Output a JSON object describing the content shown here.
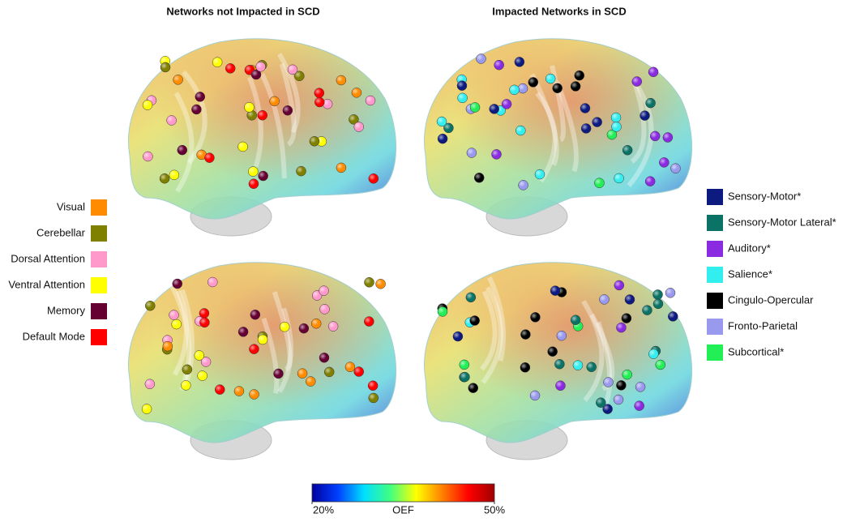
{
  "titles": {
    "left": "Networks not Impacted in SCD",
    "right": "Impacted Networks in SCD"
  },
  "legend_left": [
    {
      "label": "Visual",
      "color": "#ff8c00"
    },
    {
      "label": "Cerebellar",
      "color": "#7f7f00"
    },
    {
      "label": "Dorsal Attention",
      "color": "#ff99cc"
    },
    {
      "label": "Ventral Attention",
      "color": "#ffff00"
    },
    {
      "label": "Memory",
      "color": "#660033"
    },
    {
      "label": "Default Mode",
      "color": "#ff0000"
    }
  ],
  "legend_right": [
    {
      "label": "Sensory-Motor*",
      "color": "#0d1a80"
    },
    {
      "label": "Sensory-Motor Lateral*",
      "color": "#0a7366"
    },
    {
      "label": "Auditory*",
      "color": "#8a2be2"
    },
    {
      "label": "Salience*",
      "color": "#33eeee"
    },
    {
      "label": "Cingulo-Opercular",
      "color": "#000000"
    },
    {
      "label": "Fronto-Parietal",
      "color": "#9999ee"
    },
    {
      "label": "Subcortical*",
      "color": "#22ee55"
    }
  ],
  "colorbar": {
    "label": "OEF",
    "range": [
      20,
      50
    ],
    "ticks": [
      {
        "value": 20,
        "label": "20%"
      },
      {
        "value": 50,
        "label": "50%"
      }
    ],
    "colors": [
      "#0000a0",
      "#0040ff",
      "#00e0ff",
      "#40ff80",
      "#ffff00",
      "#ff8000",
      "#ff0000",
      "#a00000"
    ]
  }
}
